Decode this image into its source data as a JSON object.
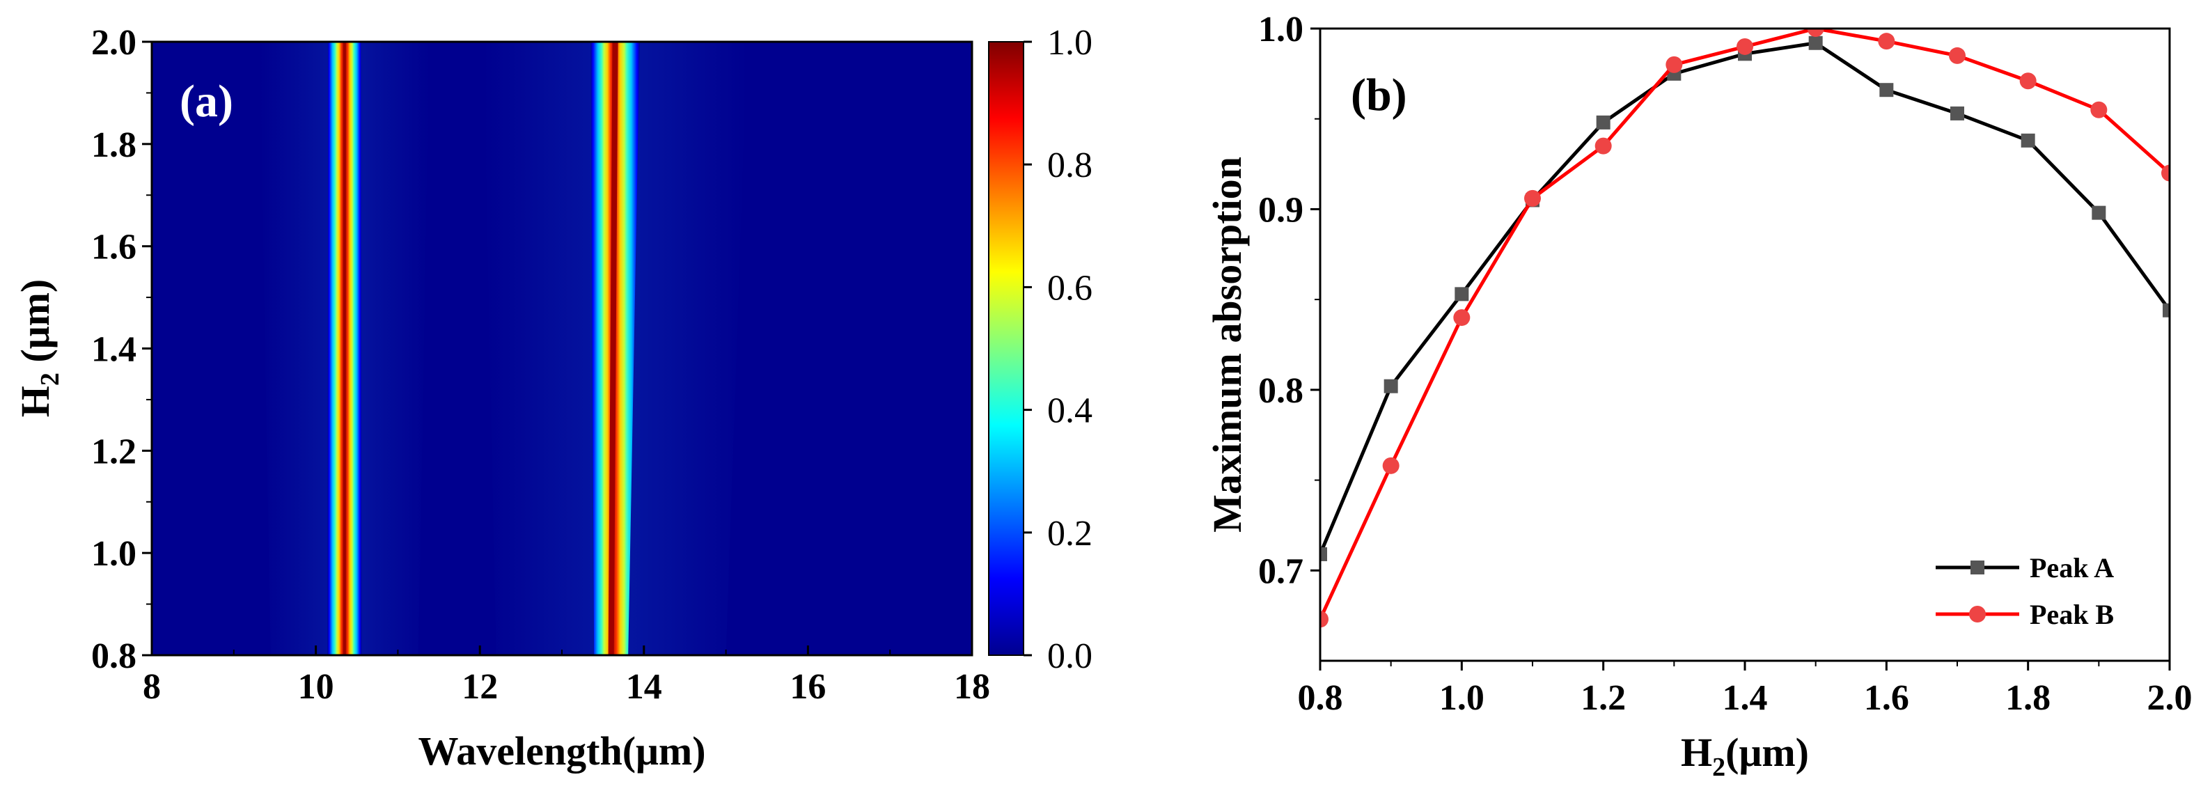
{
  "chart_data": [
    {
      "type": "heatmap",
      "panel_label": "(a)",
      "xlabel": "Wavelength(μm)",
      "ylabel_main": "H",
      "ylabel_sub": "2",
      "ylabel_unit": " (μm)",
      "xlim": [
        8,
        18
      ],
      "ylim": [
        0.8,
        2.0
      ],
      "x_ticks": [
        "8",
        "10",
        "12",
        "14",
        "16",
        "18"
      ],
      "y_ticks": [
        "0.8",
        "1.0",
        "1.2",
        "1.4",
        "1.6",
        "1.8",
        "2.0"
      ],
      "colorbar": {
        "range": [
          0.0,
          1.0
        ],
        "ticks": [
          "0.0",
          "0.2",
          "0.4",
          "0.6",
          "0.8",
          "1.0"
        ],
        "colormap": "jet"
      },
      "absorption_bands": [
        {
          "name": "Peak A",
          "center_wavelength_at_H2": [
            [
              0.8,
              10.35
            ],
            [
              2.0,
              10.35
            ]
          ]
        },
        {
          "name": "Peak B",
          "center_wavelength_at_H2": [
            [
              0.8,
              13.6
            ],
            [
              2.0,
              13.65
            ]
          ]
        }
      ],
      "colors": {
        "background": "#00008f"
      }
    },
    {
      "type": "line",
      "panel_label": "(b)",
      "xlabel_main": "H",
      "xlabel_sub": "2",
      "xlabel_unit": "(μm)",
      "ylabel": "Maximum absorption",
      "xlim": [
        0.8,
        2.0
      ],
      "ylim": [
        0.65,
        1.0
      ],
      "x_ticks": [
        "0.8",
        "1.0",
        "1.2",
        "1.4",
        "1.6",
        "1.8",
        "2.0"
      ],
      "y_ticks": [
        "0.7",
        "0.8",
        "0.9",
        "1.0"
      ],
      "legend_position": "bottom-right",
      "x": [
        0.8,
        0.9,
        1.0,
        1.1,
        1.2,
        1.3,
        1.4,
        1.5,
        1.6,
        1.7,
        1.8,
        1.9,
        2.0
      ],
      "series": [
        {
          "name": "Peak A",
          "marker": "square",
          "color": "#000000",
          "marker_color": "#555555",
          "values": [
            0.709,
            0.802,
            0.853,
            0.905,
            0.948,
            0.975,
            0.986,
            0.992,
            0.966,
            0.953,
            0.938,
            0.898,
            0.844
          ]
        },
        {
          "name": "Peak B",
          "marker": "circle",
          "color": "#ff0000",
          "marker_color": "#ee4444",
          "values": [
            0.673,
            0.758,
            0.84,
            0.906,
            0.935,
            0.98,
            0.99,
            1.0,
            0.993,
            0.985,
            0.971,
            0.955,
            0.92
          ]
        }
      ]
    }
  ]
}
